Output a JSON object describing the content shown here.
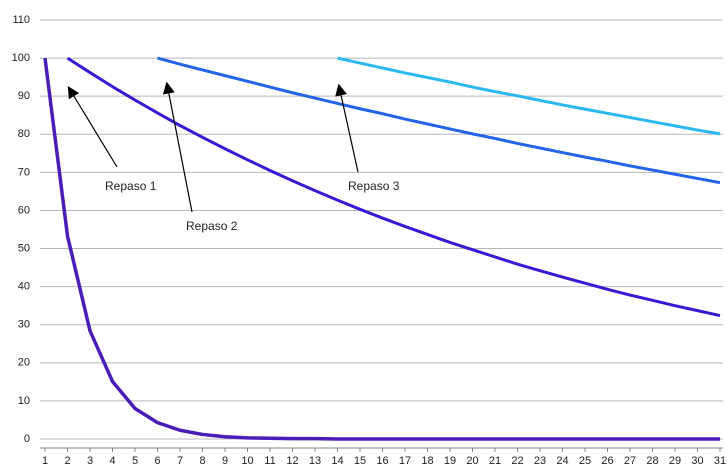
{
  "chart_data": {
    "type": "line",
    "x": [
      1,
      2,
      3,
      4,
      5,
      6,
      7,
      8,
      9,
      10,
      11,
      12,
      13,
      14,
      15,
      16,
      17,
      18,
      19,
      20,
      21,
      22,
      23,
      24,
      25,
      26,
      27,
      28,
      29,
      30,
      31
    ],
    "xlim": [
      1,
      31
    ],
    "xticks": [
      1,
      2,
      3,
      4,
      5,
      6,
      7,
      8,
      9,
      10,
      11,
      12,
      13,
      14,
      15,
      16,
      17,
      18,
      19,
      20,
      21,
      22,
      23,
      24,
      25,
      26,
      27,
      28,
      29,
      30,
      31
    ],
    "ylim": [
      0,
      110
    ],
    "yticks": [
      0,
      10,
      20,
      30,
      40,
      50,
      60,
      70,
      80,
      90,
      100,
      110
    ],
    "grid": true,
    "annotations": [
      "Repaso 1",
      "Repaso 2",
      "Repaso 3"
    ],
    "series": [
      {
        "color": "#4a1cb8",
        "values": [
          100,
          53.3,
          28.4,
          15.1,
          8.0,
          4.3,
          2.3,
          1.2,
          0.6,
          0.3,
          0.2,
          0.1,
          0.1,
          0,
          0,
          0,
          0,
          0,
          0,
          0,
          0,
          0,
          0,
          0,
          0,
          0,
          0,
          0,
          0,
          0,
          0
        ]
      },
      {
        "color": "#3a18d6",
        "values": [
          null,
          100,
          96.2,
          92.5,
          89.0,
          85.6,
          82.3,
          79.2,
          76.2,
          73.3,
          70.5,
          67.8,
          65.2,
          62.7,
          60.3,
          58.0,
          55.8,
          53.7,
          51.6,
          49.7,
          47.8,
          45.9,
          44.2,
          42.5,
          40.9,
          39.3,
          37.8,
          36.4,
          35.0,
          33.7,
          32.4
        ]
      },
      {
        "color": "#2464ea",
        "values": [
          null,
          null,
          null,
          null,
          null,
          100,
          98.4,
          96.9,
          95.4,
          93.9,
          92.4,
          90.9,
          89.5,
          88.1,
          86.7,
          85.4,
          84.0,
          82.7,
          81.4,
          80.1,
          78.9,
          77.6,
          76.4,
          75.2,
          74.0,
          72.9,
          71.7,
          70.6,
          69.5,
          68.4,
          67.3
        ]
      },
      {
        "color": "#2bb8f2",
        "values": [
          null,
          null,
          null,
          null,
          null,
          null,
          null,
          null,
          null,
          null,
          null,
          null,
          null,
          100,
          98.7,
          97.4,
          96.1,
          94.9,
          93.7,
          92.4,
          91.2,
          90.1,
          88.9,
          87.7,
          86.6,
          85.5,
          84.4,
          83.3,
          82.2,
          81.1,
          80.1
        ]
      }
    ]
  }
}
